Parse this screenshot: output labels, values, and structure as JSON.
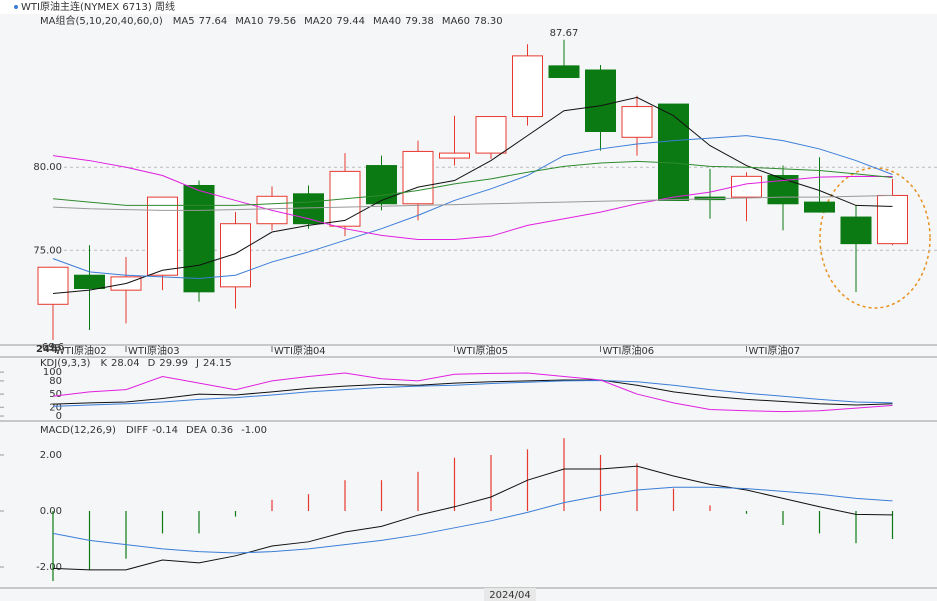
{
  "header": {
    "symbol": "WTI原油主连(NYMEX 6713)",
    "period": "周线"
  },
  "chart_data": [
    {
      "type": "candlestick",
      "title": "MA组合(5,10,20,40,60,0)",
      "categories": [
        "WTI原油02",
        null,
        "WTI原油03",
        null,
        null,
        null,
        "WTI原油04",
        null,
        null,
        null,
        null,
        "WTI原油05",
        null,
        null,
        null,
        "WTI原油06",
        null,
        null,
        null,
        "WTI原油07",
        null,
        null,
        null,
        null
      ],
      "year_label": "24年",
      "cursor_label": "2024/04",
      "open": [
        71.75,
        73.5,
        72.6,
        73.5,
        78.9,
        72.8,
        76.6,
        78.4,
        76.45,
        80.1,
        77.8,
        80.55,
        80.85,
        83.05,
        86.1,
        85.85,
        81.8,
        83.8,
        78.2,
        78.2,
        79.5,
        77.9,
        77.0,
        75.4
      ],
      "high": [
        74.0,
        75.3,
        74.6,
        78.2,
        79.2,
        77.3,
        78.85,
        78.9,
        80.85,
        80.7,
        81.6,
        83.1,
        83.05,
        87.4,
        87.67,
        86.15,
        84.3,
        83.8,
        79.9,
        79.7,
        80.1,
        80.6,
        77.7,
        79.3
      ],
      "low": [
        69.6,
        70.2,
        70.6,
        72.6,
        71.9,
        71.5,
        76.2,
        76.3,
        75.85,
        77.4,
        76.8,
        80.1,
        80.5,
        82.5,
        85.4,
        81.0,
        80.7,
        78.0,
        76.9,
        76.75,
        76.2,
        77.3,
        72.48,
        75.3
      ],
      "close": [
        73.98,
        72.7,
        73.4,
        78.2,
        72.5,
        76.6,
        78.25,
        76.6,
        79.75,
        77.8,
        80.95,
        80.85,
        83.05,
        86.7,
        85.4,
        82.15,
        83.65,
        78.0,
        78.05,
        79.45,
        77.8,
        77.3,
        75.4,
        78.3
      ],
      "up_color": "#e8392f",
      "down_color": "#0b7a12",
      "series": [
        {
          "name": "MA5",
          "label": "77.64",
          "color": "#111111",
          "values": [
            72.4,
            72.6,
            73.0,
            73.8,
            74.1,
            74.8,
            76.1,
            76.5,
            76.8,
            78.0,
            78.8,
            79.2,
            80.4,
            81.9,
            83.4,
            83.7,
            84.2,
            83.1,
            81.3,
            80.1,
            79.3,
            78.6,
            77.7,
            77.64
          ]
        },
        {
          "name": "MA10",
          "label": "79.56",
          "color": "#3b7dd8",
          "values": [
            74.5,
            73.7,
            73.5,
            73.4,
            73.3,
            73.5,
            74.3,
            74.9,
            75.6,
            76.3,
            77.1,
            78.0,
            78.7,
            79.5,
            80.7,
            81.1,
            81.4,
            81.6,
            81.75,
            81.9,
            81.6,
            81.1,
            80.4,
            79.56
          ]
        },
        {
          "name": "MA20",
          "label": "79.44",
          "color": "#e020e0",
          "values": [
            80.7,
            80.4,
            80.0,
            79.5,
            78.6,
            78.0,
            77.4,
            76.9,
            76.3,
            75.9,
            75.65,
            75.65,
            75.85,
            76.5,
            76.9,
            77.3,
            77.8,
            78.2,
            78.5,
            79.0,
            79.2,
            79.4,
            79.45,
            79.44
          ]
        },
        {
          "name": "MA40",
          "label": "79.38",
          "color": "#2e8b2e",
          "values": [
            78.1,
            77.9,
            77.7,
            77.7,
            77.7,
            77.7,
            77.8,
            77.9,
            78.1,
            78.3,
            78.6,
            79.0,
            79.3,
            79.7,
            80.05,
            80.25,
            80.35,
            80.25,
            80.05,
            80.0,
            79.9,
            79.8,
            79.6,
            79.38
          ]
        },
        {
          "name": "MA60",
          "label": "78.30",
          "color": "#999999",
          "values": [
            77.6,
            77.5,
            77.45,
            77.4,
            77.4,
            77.45,
            77.5,
            77.55,
            77.6,
            77.65,
            77.7,
            77.75,
            77.8,
            77.85,
            77.9,
            77.95,
            78.0,
            78.05,
            78.1,
            78.15,
            78.2,
            78.2,
            78.25,
            78.3
          ]
        }
      ],
      "ylim": [
        69.3,
        88.86
      ],
      "yticks": [
        {
          "value": 75,
          "label": "75.00"
        },
        {
          "value": 80,
          "label": "80.00"
        }
      ],
      "grid": true
    },
    {
      "type": "line",
      "title": "KDJ(9,3,3)",
      "series": [
        {
          "name": "K",
          "label": "28.04",
          "color": "#111111",
          "values": [
            27,
            30,
            32,
            40,
            50,
            48,
            55,
            63,
            68,
            72,
            70,
            75,
            78,
            80,
            82,
            82,
            70,
            55,
            45,
            38,
            33,
            28,
            25,
            28.04
          ]
        },
        {
          "name": "D",
          "label": "29.99",
          "color": "#3b7dd8",
          "values": [
            22,
            25,
            28,
            32,
            38,
            42,
            48,
            55,
            60,
            65,
            68,
            70,
            74,
            77,
            80,
            81,
            78,
            70,
            60,
            52,
            45,
            38,
            32,
            29.99
          ]
        },
        {
          "name": "J",
          "label": "24.15",
          "color": "#e020e0",
          "values": [
            45,
            55,
            60,
            90,
            75,
            60,
            80,
            90,
            98,
            85,
            80,
            95,
            97,
            98,
            90,
            82,
            50,
            30,
            15,
            12,
            10,
            12,
            18,
            24.15
          ]
        }
      ],
      "ylim": [
        -9,
        123
      ],
      "yticks": [
        0,
        20,
        50,
        80,
        100
      ]
    },
    {
      "type": "macd",
      "title": "MACD(12,26,9)",
      "series": [
        {
          "name": "DIFF",
          "label": "-0.14",
          "color": "#111111",
          "values": [
            -2.05,
            -2.1,
            -2.1,
            -1.75,
            -1.85,
            -1.6,
            -1.25,
            -1.1,
            -0.75,
            -0.55,
            -0.15,
            0.15,
            0.5,
            1.1,
            1.5,
            1.5,
            1.6,
            1.25,
            0.95,
            0.75,
            0.45,
            0.15,
            -0.12,
            -0.14
          ]
        },
        {
          "name": "DEA",
          "label": "0.36",
          "color": "#3b7dd8",
          "values": [
            -0.8,
            -1.05,
            -1.2,
            -1.35,
            -1.45,
            -1.5,
            -1.45,
            -1.35,
            -1.2,
            -1.05,
            -0.85,
            -0.6,
            -0.35,
            -0.05,
            0.3,
            0.55,
            0.75,
            0.85,
            0.85,
            0.8,
            0.7,
            0.6,
            0.45,
            0.36
          ]
        }
      ],
      "histogram": {
        "label": "-1.00",
        "up_color": "#e8392f",
        "down_color": "#0b7a12",
        "values": [
          -2.5,
          -2.1,
          -1.7,
          -0.8,
          -0.8,
          -0.2,
          0.4,
          0.6,
          1.1,
          1.1,
          1.4,
          1.9,
          2.0,
          2.2,
          2.6,
          2.0,
          1.7,
          0.8,
          0.2,
          -0.1,
          -0.5,
          -0.8,
          -1.15,
          -1.0
        ]
      },
      "ylim": [
        -2.82,
        3.07
      ],
      "yticks": [
        {
          "value": -2,
          "label": "-2.00"
        },
        {
          "value": 0,
          "label": "0.00"
        },
        {
          "value": 2,
          "label": "2.00"
        }
      ]
    }
  ]
}
